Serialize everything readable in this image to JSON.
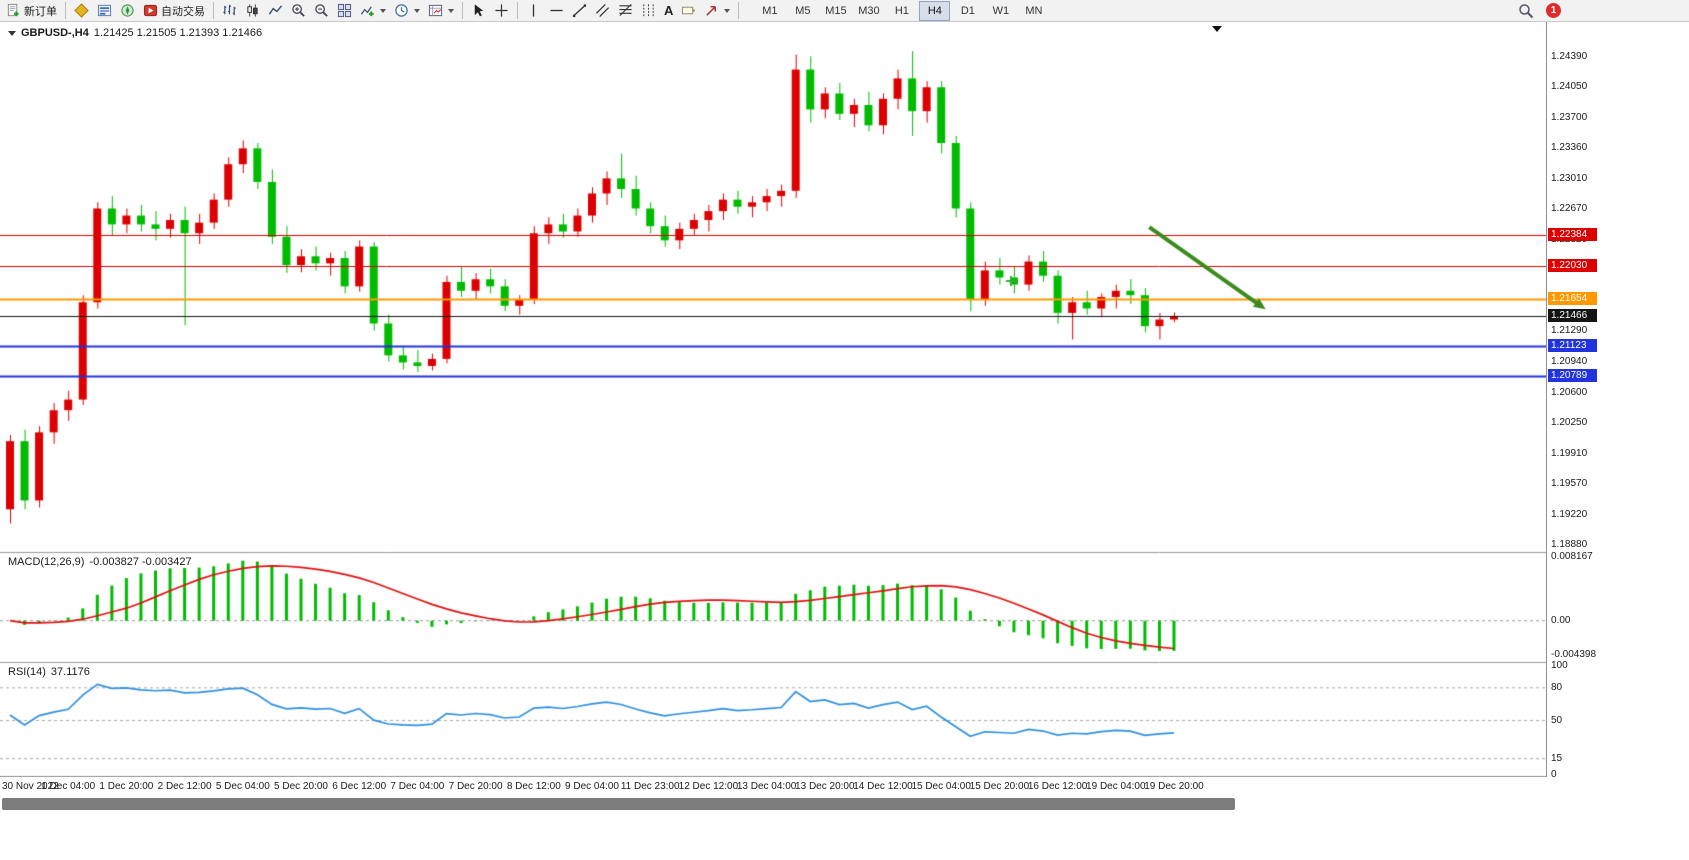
{
  "toolbar": {
    "new_order_label": "新订单",
    "auto_trading_label": "自动交易",
    "timeframes": [
      "M1",
      "M5",
      "M15",
      "M30",
      "H1",
      "H4",
      "D1",
      "W1",
      "MN"
    ],
    "active_timeframe": "H4",
    "notification_badge": "1",
    "text_tool_glyph": "A"
  },
  "icons": {
    "new-order-icon": "document-plus",
    "market-watch-icon": "gold-diamond",
    "data-window-icon": "blue-rows",
    "navigator-icon": "green-compass",
    "autotrade-icon": "red-play-square",
    "bar-chart-icon": "ohlc-bars",
    "candle-chart-icon": "candles",
    "line-chart-icon": "polyline",
    "zoom-in-icon": "magnifier-plus",
    "zoom-out-icon": "magnifier-minus",
    "tile-windows-icon": "grid-2x2",
    "indicators-icon": "plus-chart",
    "periods-icon": "clock",
    "templates-icon": "chart-template",
    "cursor-icon": "pointer-arrow",
    "crosshair-icon": "cross",
    "vertical-line-icon": "vertical-line",
    "horizontal-line-icon": "horizontal-line",
    "trendline-icon": "diagonal-line",
    "channel-icon": "parallel-lines",
    "fibonacci-icon": "fib-levels",
    "cycle-lines-icon": "vertical-dashes",
    "text-icon": "letter-A",
    "label-icon": "tag",
    "arrows-icon": "arrow-glyph",
    "search-icon": "magnifier",
    "chart-menu-caret": "down-triangle",
    "chart-shift-marker": "down-triangle"
  },
  "chart_data": {
    "type": "candlestick",
    "symbol_title": "GBPUSD-,H4",
    "timeframe": "H4",
    "ohlc_display": "1.21425 1.21505 1.21393 1.21466",
    "ylim": [
      1.1882,
      1.2472
    ],
    "bull_color": "#dd0000",
    "bear_color": "#00bb00",
    "price_axis_ticks": [
      "1.24390",
      "1.24050",
      "1.23700",
      "1.23360",
      "1.23010",
      "1.22670",
      "1.22320",
      "1.21980",
      "1.21640",
      "1.21290",
      "1.20940",
      "1.20600",
      "1.20250",
      "1.19910",
      "1.19570",
      "1.19220",
      "1.18880"
    ],
    "time_labels": [
      "30 Nov 2022",
      "1 Dec 04:00",
      "1 Dec 20:00",
      "2 Dec 12:00",
      "5 Dec 04:00",
      "5 Dec 20:00",
      "6 Dec 12:00",
      "7 Dec 04:00",
      "7 Dec 20:00",
      "8 Dec 12:00",
      "9 Dec 04:00",
      "11 Dec 23:00",
      "12 Dec 12:00",
      "13 Dec 04:00",
      "13 Dec 20:00",
      "14 Dec 12:00",
      "15 Dec 04:00",
      "15 Dec 20:00",
      "16 Dec 12:00",
      "19 Dec 04:00",
      "19 Dec 20:00"
    ],
    "label_every": 4,
    "candles": [
      [
        1.1928,
        1.2012,
        1.1912,
        1.2005
      ],
      [
        1.2005,
        1.2018,
        1.1928,
        1.1938
      ],
      [
        1.1938,
        1.2022,
        1.193,
        1.2015
      ],
      [
        1.2015,
        1.2048,
        1.2002,
        1.204
      ],
      [
        1.204,
        1.2062,
        1.2028,
        1.2052
      ],
      [
        1.2052,
        1.217,
        1.2046,
        1.2162
      ],
      [
        1.2162,
        1.2275,
        1.2155,
        1.2268
      ],
      [
        1.2268,
        1.2282,
        1.2238,
        1.225
      ],
      [
        1.225,
        1.2268,
        1.224,
        1.226
      ],
      [
        1.226,
        1.2272,
        1.2242,
        1.225
      ],
      [
        1.225,
        1.2265,
        1.2232,
        1.2245
      ],
      [
        1.2245,
        1.2262,
        1.2235,
        1.2255
      ],
      [
        1.2255,
        1.227,
        1.2136,
        1.224
      ],
      [
        1.224,
        1.2262,
        1.2228,
        1.2252
      ],
      [
        1.2252,
        1.2285,
        1.2245,
        1.2278
      ],
      [
        1.2278,
        1.2326,
        1.227,
        1.2318
      ],
      [
        1.2318,
        1.2345,
        1.2308,
        1.2336
      ],
      [
        1.2336,
        1.2342,
        1.229,
        1.2298
      ],
      [
        1.2298,
        1.2312,
        1.2228,
        1.2236
      ],
      [
        1.2236,
        1.2248,
        1.2195,
        1.2204
      ],
      [
        1.2204,
        1.2222,
        1.2196,
        1.2214
      ],
      [
        1.2214,
        1.2225,
        1.2198,
        1.2206
      ],
      [
        1.2206,
        1.2218,
        1.2192,
        1.2212
      ],
      [
        1.2212,
        1.222,
        1.2172,
        1.218
      ],
      [
        1.218,
        1.2232,
        1.2174,
        1.2225
      ],
      [
        1.2225,
        1.223,
        1.213,
        1.2138
      ],
      [
        1.2138,
        1.2148,
        1.2095,
        1.2102
      ],
      [
        1.2102,
        1.2112,
        1.2086,
        1.2094
      ],
      [
        1.2094,
        1.2108,
        1.2083,
        1.209
      ],
      [
        1.209,
        1.2104,
        1.2085,
        1.2098
      ],
      [
        1.2098,
        1.2192,
        1.2093,
        1.2185
      ],
      [
        1.2185,
        1.2202,
        1.2168,
        1.2175
      ],
      [
        1.2175,
        1.2195,
        1.2165,
        1.2188
      ],
      [
        1.2188,
        1.22,
        1.2172,
        1.218
      ],
      [
        1.218,
        1.2188,
        1.2152,
        1.2158
      ],
      [
        1.2158,
        1.217,
        1.2148,
        1.2165
      ],
      [
        1.2165,
        1.2248,
        1.216,
        1.224
      ],
      [
        1.224,
        1.2258,
        1.2228,
        1.225
      ],
      [
        1.225,
        1.2262,
        1.2235,
        1.2242
      ],
      [
        1.2242,
        1.2268,
        1.2236,
        1.226
      ],
      [
        1.226,
        1.2292,
        1.2252,
        1.2285
      ],
      [
        1.2285,
        1.231,
        1.2272,
        1.2302
      ],
      [
        1.2302,
        1.233,
        1.228,
        1.229
      ],
      [
        1.229,
        1.2305,
        1.226,
        1.2268
      ],
      [
        1.2268,
        1.2275,
        1.224,
        1.2248
      ],
      [
        1.2248,
        1.226,
        1.2225,
        1.2232
      ],
      [
        1.2232,
        1.2252,
        1.2222,
        1.2245
      ],
      [
        1.2245,
        1.2262,
        1.2238,
        1.2255
      ],
      [
        1.2255,
        1.2272,
        1.2242,
        1.2265
      ],
      [
        1.2265,
        1.2285,
        1.2255,
        1.2278
      ],
      [
        1.2278,
        1.2288,
        1.2262,
        1.227
      ],
      [
        1.227,
        1.2282,
        1.2258,
        1.2275
      ],
      [
        1.2275,
        1.229,
        1.2265,
        1.2282
      ],
      [
        1.2282,
        1.2295,
        1.227,
        1.2288
      ],
      [
        1.2288,
        1.2442,
        1.228,
        1.2425
      ],
      [
        1.2425,
        1.244,
        1.2365,
        1.238
      ],
      [
        1.238,
        1.2405,
        1.237,
        1.2398
      ],
      [
        1.2398,
        1.241,
        1.2368,
        1.2375
      ],
      [
        1.2375,
        1.2392,
        1.236,
        1.2385
      ],
      [
        1.2385,
        1.24,
        1.2355,
        1.2362
      ],
      [
        1.2362,
        1.2398,
        1.2352,
        1.2392
      ],
      [
        1.2392,
        1.2425,
        1.238,
        1.2415
      ],
      [
        1.2415,
        1.2446,
        1.235,
        1.2378
      ],
      [
        1.2378,
        1.2412,
        1.2365,
        1.2405
      ],
      [
        1.2405,
        1.2412,
        1.233,
        1.2342
      ],
      [
        1.2342,
        1.235,
        1.2258,
        1.2268
      ],
      [
        1.2268,
        1.2275,
        1.2152,
        1.2165
      ],
      [
        1.2165,
        1.2208,
        1.2158,
        1.2198
      ],
      [
        1.2198,
        1.2212,
        1.2182,
        1.219
      ],
      [
        1.219,
        1.2202,
        1.2172,
        1.2182
      ],
      [
        1.2182,
        1.2215,
        1.2175,
        1.2208
      ],
      [
        1.2208,
        1.222,
        1.2185,
        1.2192
      ],
      [
        1.2192,
        1.2198,
        1.2138,
        1.215
      ],
      [
        1.215,
        1.2168,
        1.212,
        1.2162
      ],
      [
        1.2162,
        1.2175,
        1.2148,
        1.2155
      ],
      [
        1.2155,
        1.2172,
        1.2145,
        1.2168
      ],
      [
        1.2168,
        1.2182,
        1.2155,
        1.2175
      ],
      [
        1.2175,
        1.2188,
        1.216,
        1.217
      ],
      [
        1.217,
        1.2178,
        1.2128,
        1.2135
      ],
      [
        1.2135,
        1.215,
        1.212,
        1.21425
      ],
      [
        1.21425,
        1.21505,
        1.21393,
        1.21466
      ]
    ],
    "levels": [
      {
        "price": 1.22384,
        "label": "1.22384",
        "color": "#dd0000",
        "line_width": 1
      },
      {
        "price": 1.2203,
        "label": "1.22030",
        "color": "#dd0000",
        "line_width": 1
      },
      {
        "price": 1.21654,
        "label": "1.21654",
        "color": "#ff9900",
        "line_width": 2
      },
      {
        "price": 1.21466,
        "label": "1.21466",
        "color": "#141414",
        "line_width": 1,
        "role": "current-price"
      },
      {
        "price": 1.21123,
        "label": "1.21123",
        "color": "#2233dd",
        "line_width": 2
      },
      {
        "price": 1.20789,
        "label": "1.20789",
        "color": "#2233dd",
        "line_width": 2
      }
    ],
    "annotations": [
      {
        "type": "arrow",
        "from": {
          "index": 78.3,
          "price": 1.2247
        },
        "to": {
          "index": 86.3,
          "price": 1.2154
        },
        "color": "#3c8b1f",
        "width": 4
      },
      {
        "type": "cross",
        "index": 68.8,
        "price": 1.2186,
        "color": "#2fae2f"
      }
    ],
    "indicators": [
      {
        "name": "MACD",
        "label": "MACD(12,26,9)",
        "values": "-0.003827 -0.003427",
        "axis_ticks": [
          "0.008167",
          "0.00",
          "-0.004398"
        ],
        "range": [
          -0.004398,
          0.008167
        ],
        "histogram_color": "#00bb00",
        "signal_color": "#e01010"
      },
      {
        "name": "RSI",
        "label": "RSI(14)",
        "values": "37.1176",
        "axis_ticks": [
          "100",
          "80",
          "50",
          "15",
          "0"
        ],
        "levels": [
          80,
          50,
          15
        ],
        "range": [
          0,
          100
        ],
        "line_color": "#2f8fdf"
      }
    ]
  }
}
